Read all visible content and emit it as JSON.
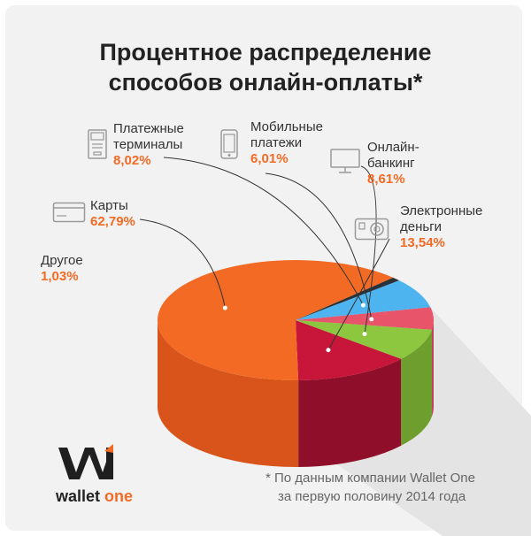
{
  "title_line1": "Процентное распределение",
  "title_line2": "способов онлайн-оплаты*",
  "chart_data": {
    "type": "pie",
    "title": "Процентное распределение способов онлайн-оплаты*",
    "slices": [
      {
        "label": "Электронные деньги",
        "label_lines": [
          "Электронные",
          "деньги"
        ],
        "value": 13.54,
        "value_text": "13,54%",
        "color": "#c8163a",
        "side_color": "#8f0f2a",
        "icon": "wallet-icon"
      },
      {
        "label": "Онлайн-банкинг",
        "label_lines": [
          "Онлайн-",
          "банкинг"
        ],
        "value": 8.61,
        "value_text": "8,61%",
        "color": "#8dc63f",
        "side_color": "#6e9e2e",
        "icon": "monitor-icon"
      },
      {
        "label": "Мобильные платежи",
        "label_lines": [
          "Мобильные",
          "платежи"
        ],
        "value": 6.01,
        "value_text": "6,01%",
        "color": "#e8546a",
        "side_color": "#c0405a",
        "icon": "smartphone-icon"
      },
      {
        "label": "Платежные терминалы",
        "label_lines": [
          "Платежные",
          "терминалы"
        ],
        "value": 8.02,
        "value_text": "8,02%",
        "color": "#4db4f0",
        "side_color": "#3a8fc9",
        "icon": "terminal-icon"
      },
      {
        "label": "Другое",
        "label_lines": [
          "Другое"
        ],
        "value": 1.03,
        "value_text": "1,03%",
        "color": "#2a3138",
        "side_color": "#1b2026",
        "icon": ""
      },
      {
        "label": "Карты",
        "label_lines": [
          "Карты"
        ],
        "value": 62.79,
        "value_text": "62,79%",
        "color": "#f36a24",
        "side_color": "#d9541a",
        "icon": "card-icon"
      }
    ]
  },
  "footnote_line1": "*  По данным компании Wallet One",
  "footnote_line2": "за первую половину 2014 года",
  "logo": {
    "word1": "wallet",
    "word2": " one",
    "color": "#f36a24"
  }
}
